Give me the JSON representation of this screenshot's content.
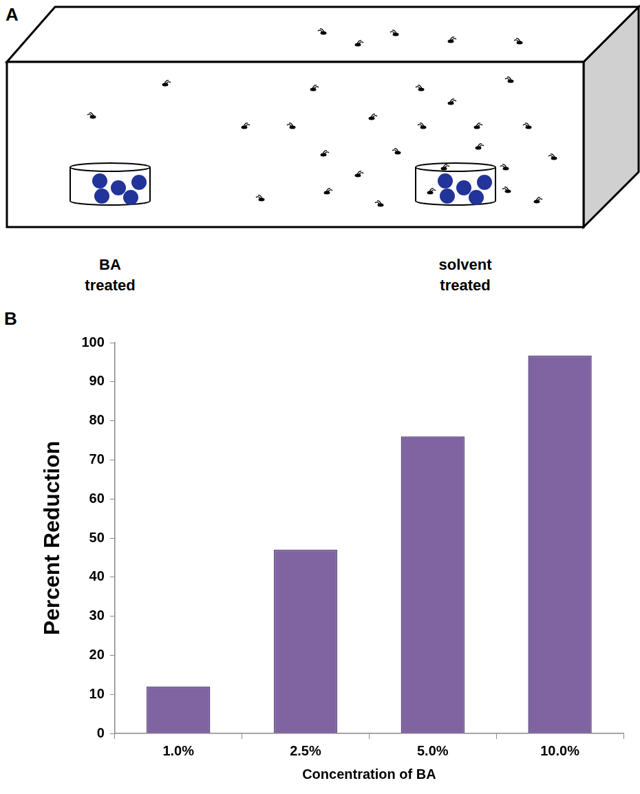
{
  "diagram": {
    "panel_label": "A",
    "labels": [
      "BA treated",
      "solvent treated"
    ]
  },
  "chart_data": {
    "panel_label": "B",
    "type": "bar",
    "categories": [
      "1.0%",
      "2.5%",
      "5.0%",
      "10.0%"
    ],
    "values": [
      12,
      47,
      76,
      96.7
    ],
    "color": "#8064a2",
    "xlabel": "Concentration of BA",
    "ylabel": "Percent Reduction",
    "ylim": [
      0,
      100
    ],
    "yticks": [
      0,
      10,
      20,
      30,
      40,
      50,
      60,
      70,
      80,
      90,
      100
    ],
    "grid": false
  }
}
